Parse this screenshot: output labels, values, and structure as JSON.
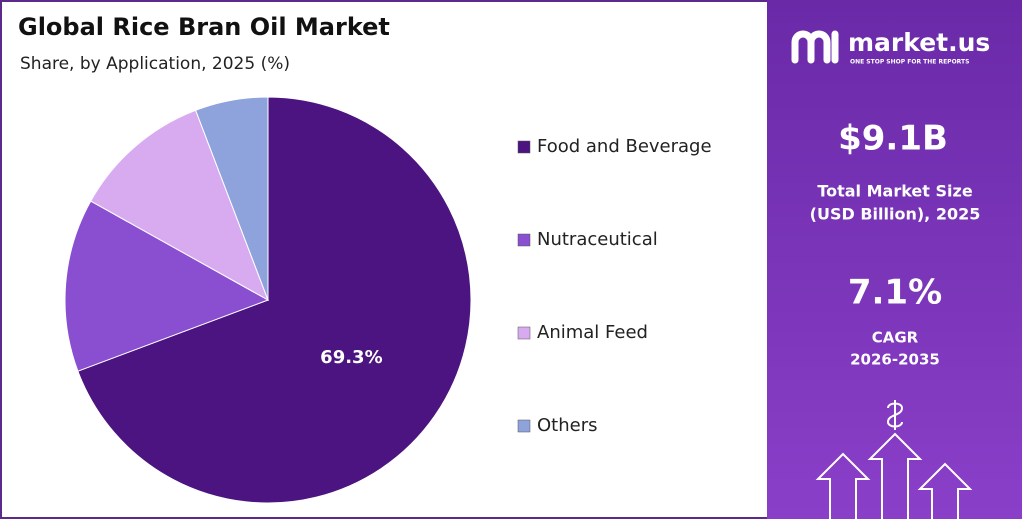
{
  "chart_data": {
    "type": "pie",
    "title": "Global Rice Bran Oil Market",
    "subtitle": "Share, by Application, 2025 (%)",
    "categories": [
      "Food and Beverage",
      "Nutraceutical",
      "Animal Feed",
      "Others"
    ],
    "values": [
      69.3,
      13.8,
      11.1,
      5.8
    ],
    "value_labels": [
      "69.3%",
      null,
      null,
      null
    ],
    "colors": [
      "#4b1480",
      "#8a4fd0",
      "#d8aaf0",
      "#8ea3dc"
    ],
    "legend": "right"
  },
  "panel": {
    "brand": "market.us",
    "tagline": "ONE STOP SHOP FOR THE REPORTS",
    "market_size": "$9.1B",
    "market_size_label_1": "Total Market Size",
    "market_size_label_2": "(USD Billion), 2025",
    "cagr": "7.1%",
    "cagr_label": "CAGR",
    "cagr_period": "2026-2035"
  }
}
